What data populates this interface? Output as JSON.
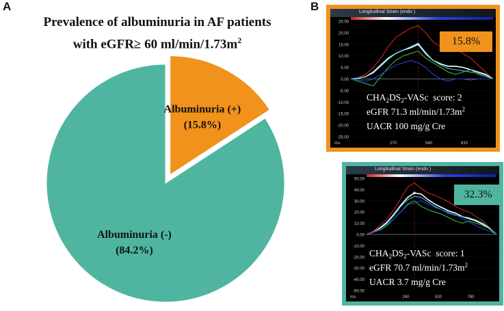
{
  "panel_a_letter": "A",
  "panel_b_letter": "B",
  "chart_data": [
    {
      "type": "pie",
      "title_line1": "Prevalence of albuminuria in AF patients",
      "title_line2_prefix": "with eGFR≥ 60 ml/min/1.73m",
      "title_line2_sup": "2",
      "slices": [
        {
          "label": "Albuminuria (+)",
          "value_label": "(15.8%)",
          "value": 15.8,
          "color": "#f0921b",
          "exploded": true
        },
        {
          "label": "Albuminuria (-)",
          "value_label": "(84.2%)",
          "value": 84.2,
          "color": "#4fb5a0",
          "exploded": false
        }
      ]
    },
    {
      "type": "line",
      "header": "Longitudinal Strain (endo )",
      "badge": "15.8%",
      "border_color": "#f0921b",
      "ylim": [
        -25,
        25
      ],
      "y_ticks": [
        "25.00",
        "20.00",
        "15.00",
        "10.00",
        "5.00",
        "0.00",
        "-5.00",
        "-10.00",
        "-15.00",
        "-20.00",
        "-25.00"
      ],
      "x_ticks": [
        "ms.",
        "270",
        "540",
        "810"
      ],
      "lines": [
        {
          "name": "red",
          "color": "#d21e1e",
          "values": [
            0,
            0.5,
            2,
            5,
            9,
            14,
            18,
            20,
            22,
            23,
            20,
            16,
            14,
            15,
            13,
            11,
            9,
            6,
            3,
            0
          ]
        },
        {
          "name": "white",
          "color": "#ffffff",
          "values": [
            0,
            0.3,
            1,
            3,
            6,
            9,
            11,
            12.5,
            13.5,
            15,
            11,
            8,
            6.5,
            5.5,
            5.5,
            5,
            4,
            3,
            2,
            0
          ]
        },
        {
          "name": "cyan",
          "color": "#42c6e6",
          "values": [
            0,
            0.2,
            1,
            2.5,
            5.5,
            8.5,
            11,
            12.5,
            14,
            15.5,
            11.5,
            8,
            6,
            4.5,
            4,
            3.5,
            3,
            2.5,
            1.5,
            0
          ]
        },
        {
          "name": "green",
          "color": "#3cb43c",
          "values": [
            0,
            -1,
            -2,
            -3,
            1,
            5,
            8,
            10,
            11,
            12,
            9,
            7,
            5,
            3,
            2,
            3,
            4,
            2,
            1,
            0
          ]
        },
        {
          "name": "blue",
          "color": "#2540d8",
          "values": [
            0,
            -0.5,
            -1,
            0,
            2,
            4,
            6,
            7,
            8,
            7,
            5,
            2,
            0,
            -1,
            0,
            0,
            -0.5,
            0,
            0,
            0
          ]
        }
      ],
      "info": {
        "score_prefix": "CHA",
        "score_sub1": "2",
        "score_mid": "DS",
        "score_sub2": "2",
        "score_suffix": "-VASc  score: 2",
        "egfr_prefix": "eGFR 71.3 ml/min/1.73m",
        "egfr_sup": "2",
        "uacr": "UACR 100 mg/g Cre"
      }
    },
    {
      "type": "line",
      "header": "Longitudinal Strain (endo )",
      "badge": "32.3%",
      "border_color": "#4fb5a0",
      "ylim": [
        -50,
        50
      ],
      "y_ticks": [
        "50.00",
        "40.00",
        "30.00",
        "20.00",
        "10.00",
        "0.00",
        "-10.00",
        "-20.00",
        "-30.00",
        "-40.00",
        "-50.00"
      ],
      "x_ticks": [
        "ms.",
        "260",
        "520",
        "780"
      ],
      "lines": [
        {
          "name": "red",
          "color": "#d21e1e",
          "values": [
            0,
            3,
            8,
            14,
            22,
            32,
            42,
            46,
            41,
            37,
            35,
            32,
            29,
            25,
            22,
            20,
            16,
            12,
            6,
            0
          ]
        },
        {
          "name": "white",
          "color": "#ffffff",
          "values": [
            0,
            2,
            6,
            11,
            18,
            26,
            33,
            37,
            36,
            31,
            27,
            24,
            21,
            19,
            16,
            14,
            12,
            9,
            5,
            0
          ]
        },
        {
          "name": "cyan",
          "color": "#42c6e6",
          "values": [
            0,
            2,
            5,
            10,
            17,
            25,
            31,
            34,
            33,
            29,
            25,
            22,
            19,
            17,
            16,
            15,
            13,
            10,
            6,
            0
          ]
        },
        {
          "name": "green",
          "color": "#3cb43c",
          "values": [
            0,
            2,
            4,
            8,
            14,
            20,
            27,
            30,
            25,
            22,
            20,
            18,
            15,
            12,
            10,
            12,
            10,
            8,
            5,
            0
          ]
        },
        {
          "name": "blue",
          "color": "#2540d8",
          "values": [
            0,
            2,
            5,
            9,
            14,
            20,
            26,
            28,
            30,
            27,
            24,
            22,
            20,
            18,
            14,
            11,
            8,
            5,
            3,
            0
          ]
        }
      ],
      "info": {
        "score_prefix": "CHA",
        "score_sub1": "2",
        "score_mid": "DS",
        "score_sub2": "2",
        "score_suffix": "-VASc  score: 1",
        "egfr_prefix": "eGFR 70.7 ml/min/1.73m",
        "egfr_sup": "2",
        "uacr": "UACR 3.7 mg/g Cre"
      }
    }
  ]
}
